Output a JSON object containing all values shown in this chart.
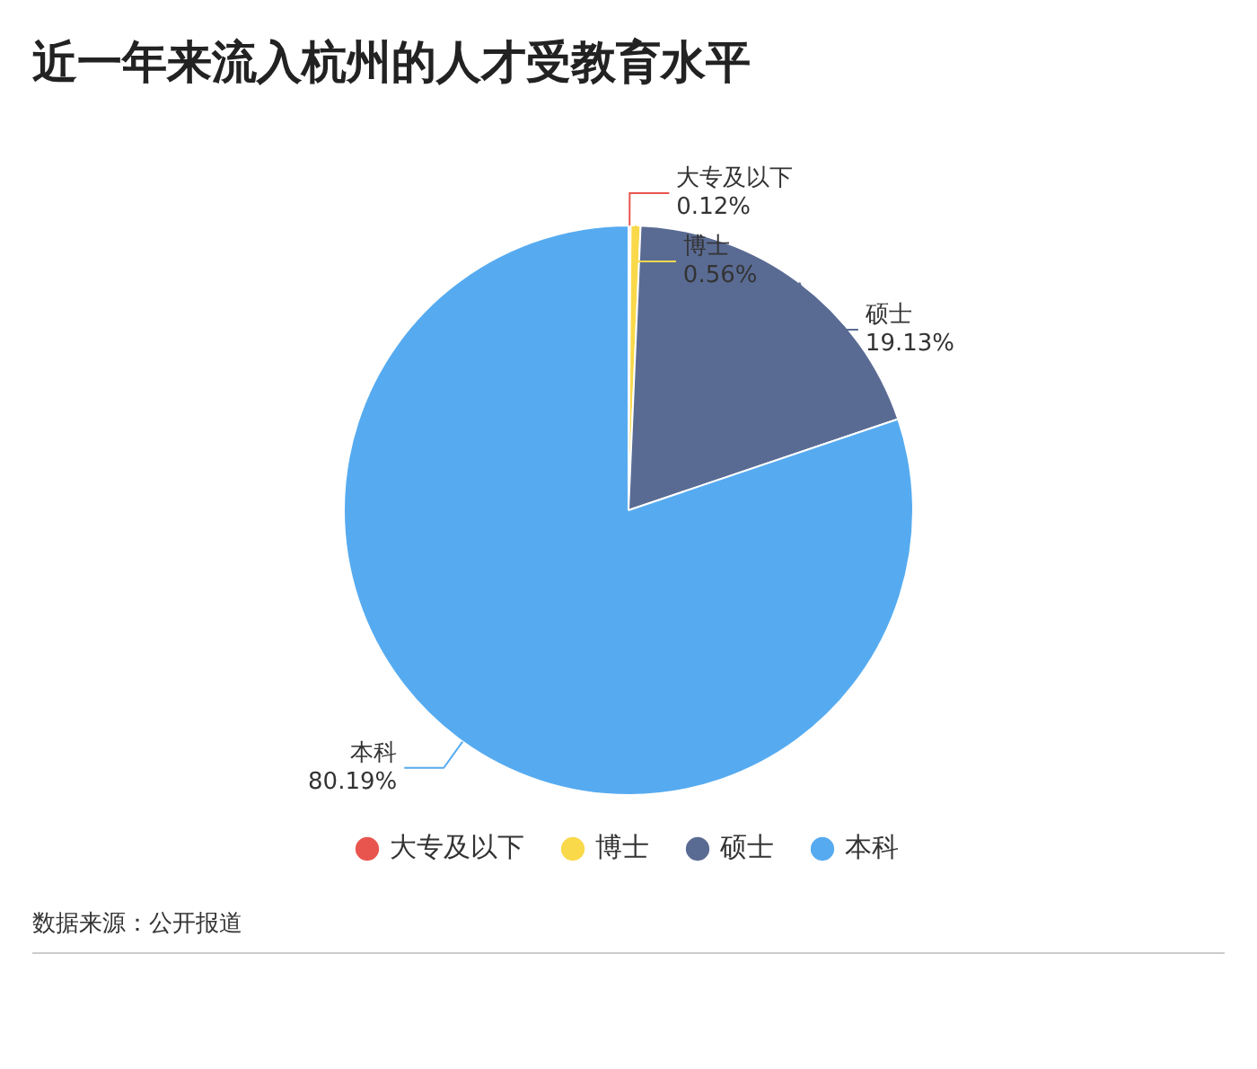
{
  "chart_data": {
    "type": "pie",
    "title": "近一年来流入杭州的人才受教育水平",
    "categories": [
      "大专及以下",
      "博士",
      "硕士",
      "本科"
    ],
    "values": [
      0.12,
      0.56,
      19.13,
      80.19
    ],
    "colors": [
      "#e8554e",
      "#f9d94a",
      "#5a6b93",
      "#56abf0"
    ],
    "value_labels": [
      "0.12%",
      "0.56%",
      "19.13%",
      "80.19%"
    ],
    "legend": "bottom",
    "annotations": [
      "数据来源：公开报道"
    ]
  }
}
